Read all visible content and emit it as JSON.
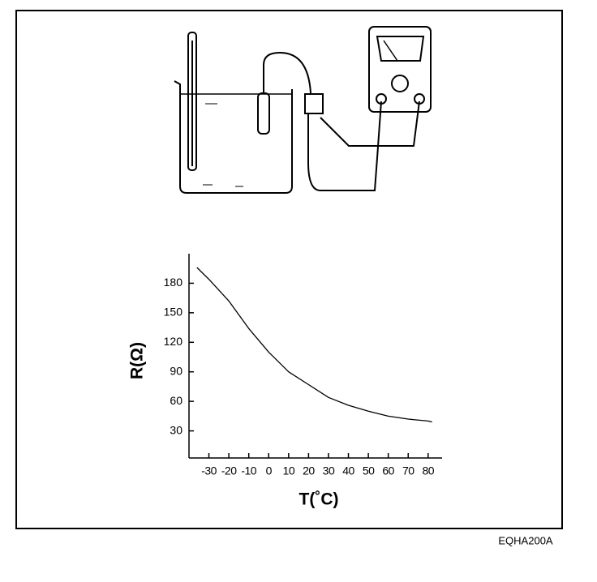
{
  "chart_data": {
    "type": "line",
    "xlabel": "T(˚C)",
    "ylabel": "R(Ω)",
    "x": [
      -36,
      -30,
      -20,
      -10,
      0,
      10,
      20,
      30,
      40,
      50,
      60,
      70,
      80,
      82
    ],
    "series": [
      {
        "color": "#000000",
        "values": [
          196,
          184,
          162,
          134,
          110,
          90,
          77,
          64,
          56,
          50,
          45,
          42,
          40,
          39
        ]
      }
    ],
    "xlim": [
      -40,
      87
    ],
    "xticks": [
      -30,
      -20,
      -10,
      0,
      10,
      20,
      30,
      40,
      50,
      60,
      70,
      80
    ],
    "ylim": [
      0,
      210
    ],
    "yticks": [
      30,
      60,
      90,
      120,
      150,
      180
    ]
  },
  "figure_code": "EQHA200A"
}
